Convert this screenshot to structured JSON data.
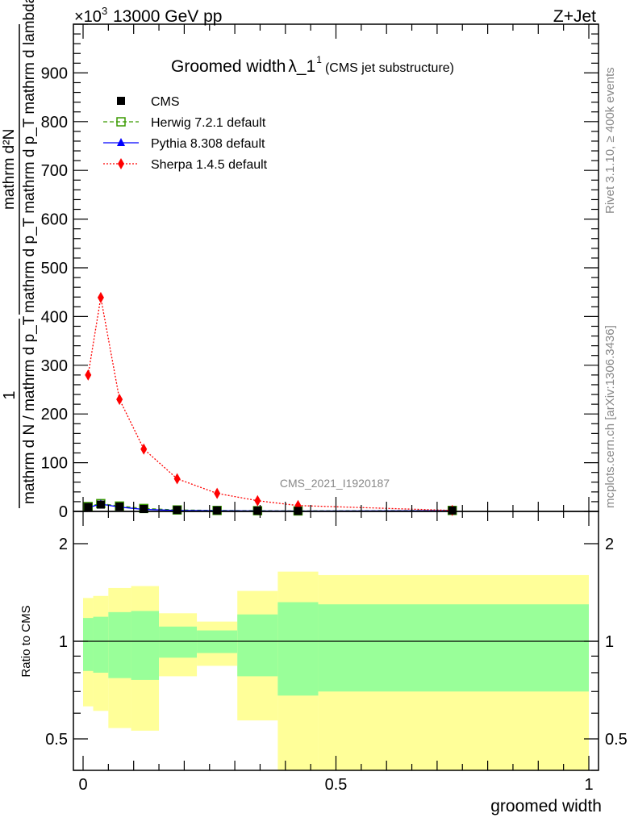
{
  "chart_data": [
    {
      "type": "line",
      "title": "Groomed width",
      "title_symbol": "λ_1",
      "title_sup": "1",
      "title_suffix": "(CMS jet substructure)",
      "top_left_label": "13000 GeV pp",
      "top_right_label": "Z+Jet",
      "y_multiplier": "×10",
      "y_multiplier_exp": "3",
      "ylabel_prefix_num": "1",
      "ylabel_prefix_den": "mathrm d N / mathrm d p_T",
      "ylabel_num": "mathrm d²N",
      "ylabel_den": "mathrm d p_T mathrm d lambda",
      "ylabel_den_full": "mathrm d p_T mathrm d p_T mathrm d lambda",
      "side_label_top": "Rivet 3.1.10, ≥ 400k events",
      "side_label_bottom": "mcplots.cern.ch [arXiv:1306.3436]",
      "watermark": "CMS_2021_I1920187",
      "xlim": [
        -0.02,
        1.02
      ],
      "ylim": [
        0,
        1000
      ],
      "y_ticks": [
        "0",
        "100",
        "200",
        "300",
        "400",
        "500",
        "600",
        "700",
        "800",
        "900"
      ],
      "bin_edges": [
        0,
        0.02,
        0.05,
        0.095,
        0.15,
        0.225,
        0.305,
        0.385,
        0.465,
        1.0
      ],
      "legend_position": "top-left",
      "series": [
        {
          "name": "CMS",
          "color": "#000000",
          "marker": "square-filled",
          "x": [
            0.01,
            0.035,
            0.072,
            0.12,
            0.186,
            0.265,
            0.345,
            0.425,
            0.73
          ],
          "values": [
            9,
            14,
            10,
            5,
            3,
            2,
            1.5,
            1,
            2
          ]
        },
        {
          "name": "Herwig 7.2.1 default",
          "color": "#3a9a00",
          "marker": "square-open",
          "line": "dashed",
          "x": [
            0.01,
            0.035,
            0.072,
            0.12,
            0.186,
            0.265,
            0.345,
            0.425,
            0.73
          ],
          "values": [
            10,
            16,
            11,
            6,
            3,
            2,
            1.5,
            1,
            2
          ]
        },
        {
          "name": "Pythia 8.308 default",
          "color": "#0000ff",
          "marker": "triangle",
          "line": "solid",
          "x": [
            0.01,
            0.035,
            0.072,
            0.12,
            0.186,
            0.265,
            0.345,
            0.425,
            0.73
          ],
          "values": [
            8,
            15,
            9,
            4,
            2,
            1.5,
            1,
            0.7,
            1.5
          ]
        },
        {
          "name": "Sherpa 1.4.5 default",
          "color": "#ff0000",
          "marker": "diamond",
          "line": "dotted",
          "x": [
            0.01,
            0.035,
            0.072,
            0.12,
            0.186,
            0.265,
            0.345,
            0.425,
            0.73
          ],
          "values": [
            280,
            439,
            230,
            128,
            67,
            37,
            22,
            12,
            2
          ]
        }
      ]
    },
    {
      "type": "area",
      "ylabel": "Ratio to CMS",
      "xlabel": "groomed width",
      "x_ticks": [
        "0",
        "0.5",
        "1"
      ],
      "y_ticks": [
        "0.5",
        "1",
        "2"
      ],
      "ylim": [
        0.4,
        2.5
      ],
      "yscale": "log",
      "reference_line": 1,
      "bin_edges": [
        0,
        0.02,
        0.05,
        0.095,
        0.15,
        0.225,
        0.305,
        0.385,
        0.465,
        1.0
      ],
      "band_outer_color": "#ffff99",
      "band_inner_color": "#99ff99",
      "outer_up": [
        1.36,
        1.38,
        1.46,
        1.48,
        1.22,
        1.15,
        1.43,
        1.64,
        1.6
      ],
      "inner_up": [
        1.18,
        1.19,
        1.23,
        1.24,
        1.11,
        1.08,
        1.21,
        1.32,
        1.3
      ],
      "inner_down": [
        0.81,
        0.8,
        0.77,
        0.76,
        0.89,
        0.92,
        0.78,
        0.68,
        0.7
      ],
      "outer_down": [
        0.63,
        0.61,
        0.54,
        0.53,
        0.78,
        0.84,
        0.57,
        0.4,
        0.4
      ]
    }
  ]
}
